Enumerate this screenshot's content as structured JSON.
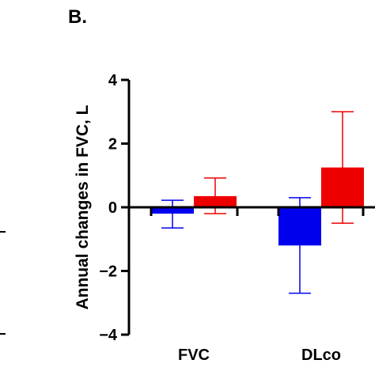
{
  "panel_label": "B.",
  "chart_data": {
    "type": "bar",
    "title": "",
    "xlabel": "",
    "ylabel": "Annual changes in FVC, L",
    "ylim": [
      -4,
      4
    ],
    "yticks": [
      -4,
      -2,
      0,
      2,
      4
    ],
    "ytick_labels": [
      "−4",
      "−2",
      "0",
      "2",
      "4"
    ],
    "categories": [
      "FVC",
      "DLco"
    ],
    "colors": [
      "#0000ee",
      "#ee0000"
    ],
    "series": [
      {
        "values": [
          -0.2,
          -1.2
        ],
        "err_low": [
          -0.65,
          -2.7
        ],
        "err_high": [
          0.22,
          0.3
        ]
      },
      {
        "values": [
          0.35,
          1.25
        ],
        "err_low": [
          -0.2,
          -0.5
        ],
        "err_high": [
          0.92,
          3.0
        ]
      }
    ]
  }
}
